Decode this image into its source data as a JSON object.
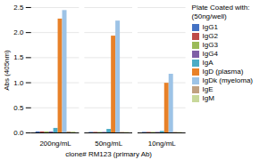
{
  "chart_data": {
    "type": "bar",
    "title": "Plate Coated with:\n(50ng/well)",
    "xlabel": "clone# RM123 (primary Ab)",
    "ylabel": "Abs (405nm)",
    "categories": [
      "200ng/mL",
      "50ng/mL",
      "10ng/mL"
    ],
    "series": [
      {
        "name": "IgG1",
        "color": "#4472c4",
        "values": [
          0.02,
          0.01,
          0.01
        ]
      },
      {
        "name": "IgG2",
        "color": "#be4b48",
        "values": [
          0.02,
          0.01,
          0.01
        ]
      },
      {
        "name": "IgG3",
        "color": "#9bbb59",
        "values": [
          0.02,
          0.01,
          0.01
        ]
      },
      {
        "name": "IgG4",
        "color": "#7f5fa6",
        "values": [
          0.02,
          0.01,
          0.01
        ]
      },
      {
        "name": "IgA",
        "color": "#4bacc6",
        "values": [
          0.09,
          0.07,
          0.03
        ]
      },
      {
        "name": "IgD (plasma)",
        "color": "#e88128",
        "values": [
          2.27,
          1.93,
          0.99
        ]
      },
      {
        "name": "IgDk (myeloma)",
        "color": "#9dc3e6",
        "values": [
          2.44,
          2.23,
          1.17
        ]
      },
      {
        "name": "IgE",
        "color": "#c0a080",
        "values": [
          0.02,
          0.01,
          0.01
        ]
      },
      {
        "name": "IgM",
        "color": "#c8d89a",
        "values": [
          0.02,
          0.01,
          0.01
        ]
      }
    ],
    "ylim": [
      0,
      2.5
    ],
    "yticks": [
      {
        "value": 0,
        "label": "0.0"
      },
      0.5,
      {
        "value": 1,
        "label": "1.0"
      },
      1.5,
      {
        "value": 2,
        "label": "2.0"
      },
      2.5
    ],
    "grid": true,
    "legend": "right"
  }
}
